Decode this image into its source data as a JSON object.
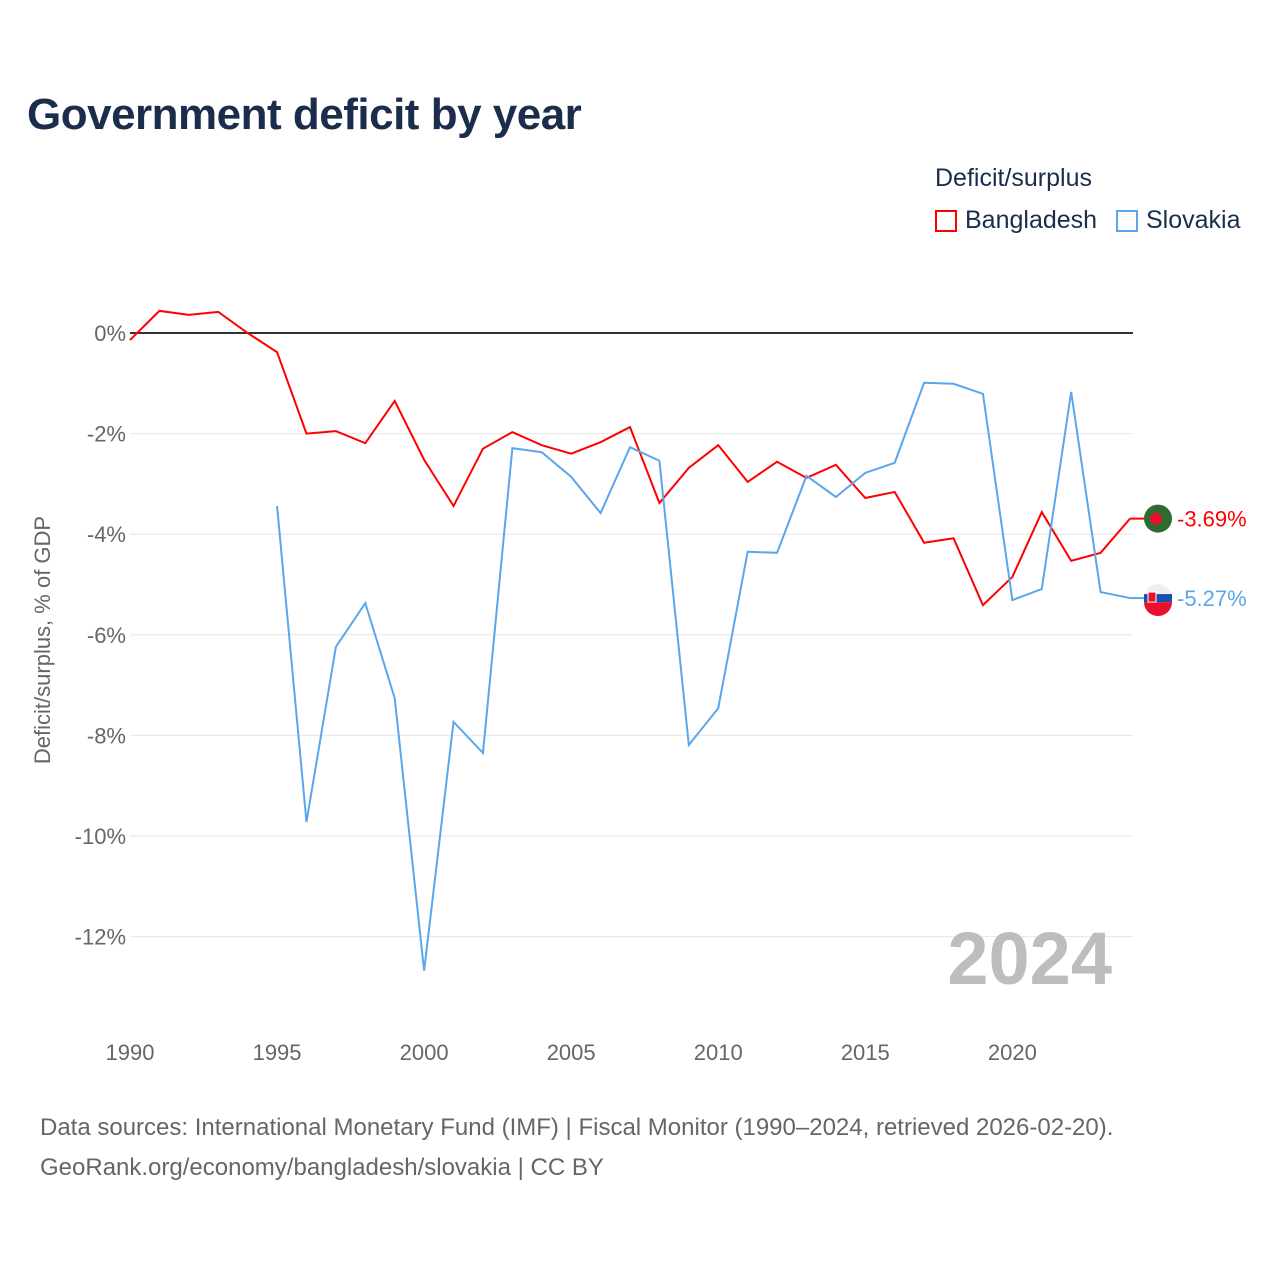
{
  "title": "Government deficit by year",
  "legend": {
    "title": "Deficit/surplus",
    "items": [
      {
        "label": "Bangladesh",
        "color": "#ff0000"
      },
      {
        "label": "Slovakia",
        "color": "#5aa6ec"
      }
    ]
  },
  "footer": {
    "line1": "Data sources: International Monetary Fund (IMF) | Fiscal Monitor (1990–2024, retrieved 2026-02-20).",
    "line2": "GeoRank.org/economy/bangladesh/slovakia | CC BY"
  },
  "chart_data": {
    "type": "line",
    "title": "Government deficit by year",
    "ylabel": "Deficit/surplus, % of GDP",
    "xlabel": "",
    "xlim": [
      1990,
      2024
    ],
    "ylim": [
      -13.5,
      1
    ],
    "grid": true,
    "legend_position": "top-right",
    "year_watermark": "2024",
    "x_ticks": [
      1990,
      1995,
      2000,
      2005,
      2010,
      2015,
      2020
    ],
    "y_ticks": [
      0,
      -2,
      -4,
      -6,
      -8,
      -10,
      -12
    ],
    "y_tick_labels": [
      "0%",
      "-2%",
      "-4%",
      "-6%",
      "-8%",
      "-10%",
      "-12%"
    ],
    "series": [
      {
        "name": "Bangladesh",
        "color": "#ff0000",
        "end_label": "-3.69%",
        "start_year": 1990,
        "values": [
          -0.14,
          0.44,
          0.36,
          0.42,
          0.0,
          -0.38,
          -2.0,
          -1.95,
          -2.19,
          -1.35,
          -2.52,
          -3.44,
          -2.3,
          -1.97,
          -2.23,
          -2.4,
          -2.17,
          -1.87,
          -3.38,
          -2.68,
          -2.23,
          -2.96,
          -2.56,
          -2.88,
          -2.62,
          -3.28,
          -3.16,
          -4.17,
          -4.08,
          -5.41,
          -4.85,
          -3.56,
          -4.53,
          -4.37,
          -3.69
        ]
      },
      {
        "name": "Slovakia",
        "color": "#5aa6ec",
        "end_label": "-5.27%",
        "start_year": 1995,
        "values": [
          -3.44,
          -9.72,
          -6.24,
          -5.37,
          -7.26,
          -12.68,
          -7.73,
          -8.35,
          -2.29,
          -2.37,
          -2.86,
          -3.58,
          -2.27,
          -2.54,
          -8.19,
          -7.46,
          -4.35,
          -4.37,
          -2.84,
          -3.26,
          -2.78,
          -2.58,
          -0.99,
          -1.01,
          -1.21,
          -5.31,
          -5.09,
          -1.17,
          -5.15,
          -5.27
        ]
      }
    ]
  }
}
